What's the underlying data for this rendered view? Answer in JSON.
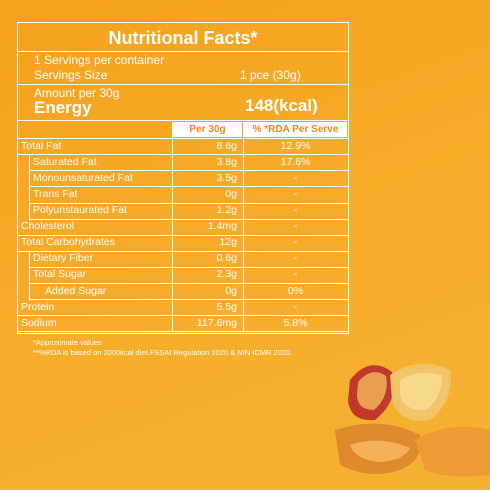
{
  "header": {
    "title": "Nutritional Facts*"
  },
  "servings": {
    "per_container": "1 Servings per container",
    "size_label": "Servings Size",
    "size_value": "1 pce (30g)"
  },
  "amount": {
    "label": "Amount per 30g",
    "energy_label": "Energy",
    "energy_value": "148(kcal)"
  },
  "table": {
    "columns": [
      "Per 30g",
      "% *RDA Per Serve"
    ],
    "rows": [
      [
        "Total Fat",
        "8.6g",
        "12.9%"
      ],
      [
        "Saturated Fat",
        "3.8g",
        "17.6%"
      ],
      [
        "Monounsaturated Fat",
        "3.5g",
        "-"
      ],
      [
        "Trans Fat",
        "0g",
        "-"
      ],
      [
        "Polyunstaurated Fat",
        "1.2g",
        "-"
      ],
      [
        "Cholesterol",
        "1.4mg",
        "-"
      ],
      [
        "Total Carbohydrates",
        "12g",
        "-"
      ],
      [
        "Dietary Fiber",
        "0.6g",
        "-"
      ],
      [
        "Total Sugar",
        "2.3g",
        "-"
      ],
      [
        "Added Sugar",
        "0g",
        "0%"
      ],
      [
        "Protein",
        "5.5g",
        "-"
      ],
      [
        "Sodium",
        "117.6mg",
        "5.8%"
      ]
    ]
  },
  "footnotes": [
    "*Approximate values",
    "**%RDA is based on 2000kcal diet.FSSAI Regulation 2020 & NIN ICMR 2020."
  ]
}
